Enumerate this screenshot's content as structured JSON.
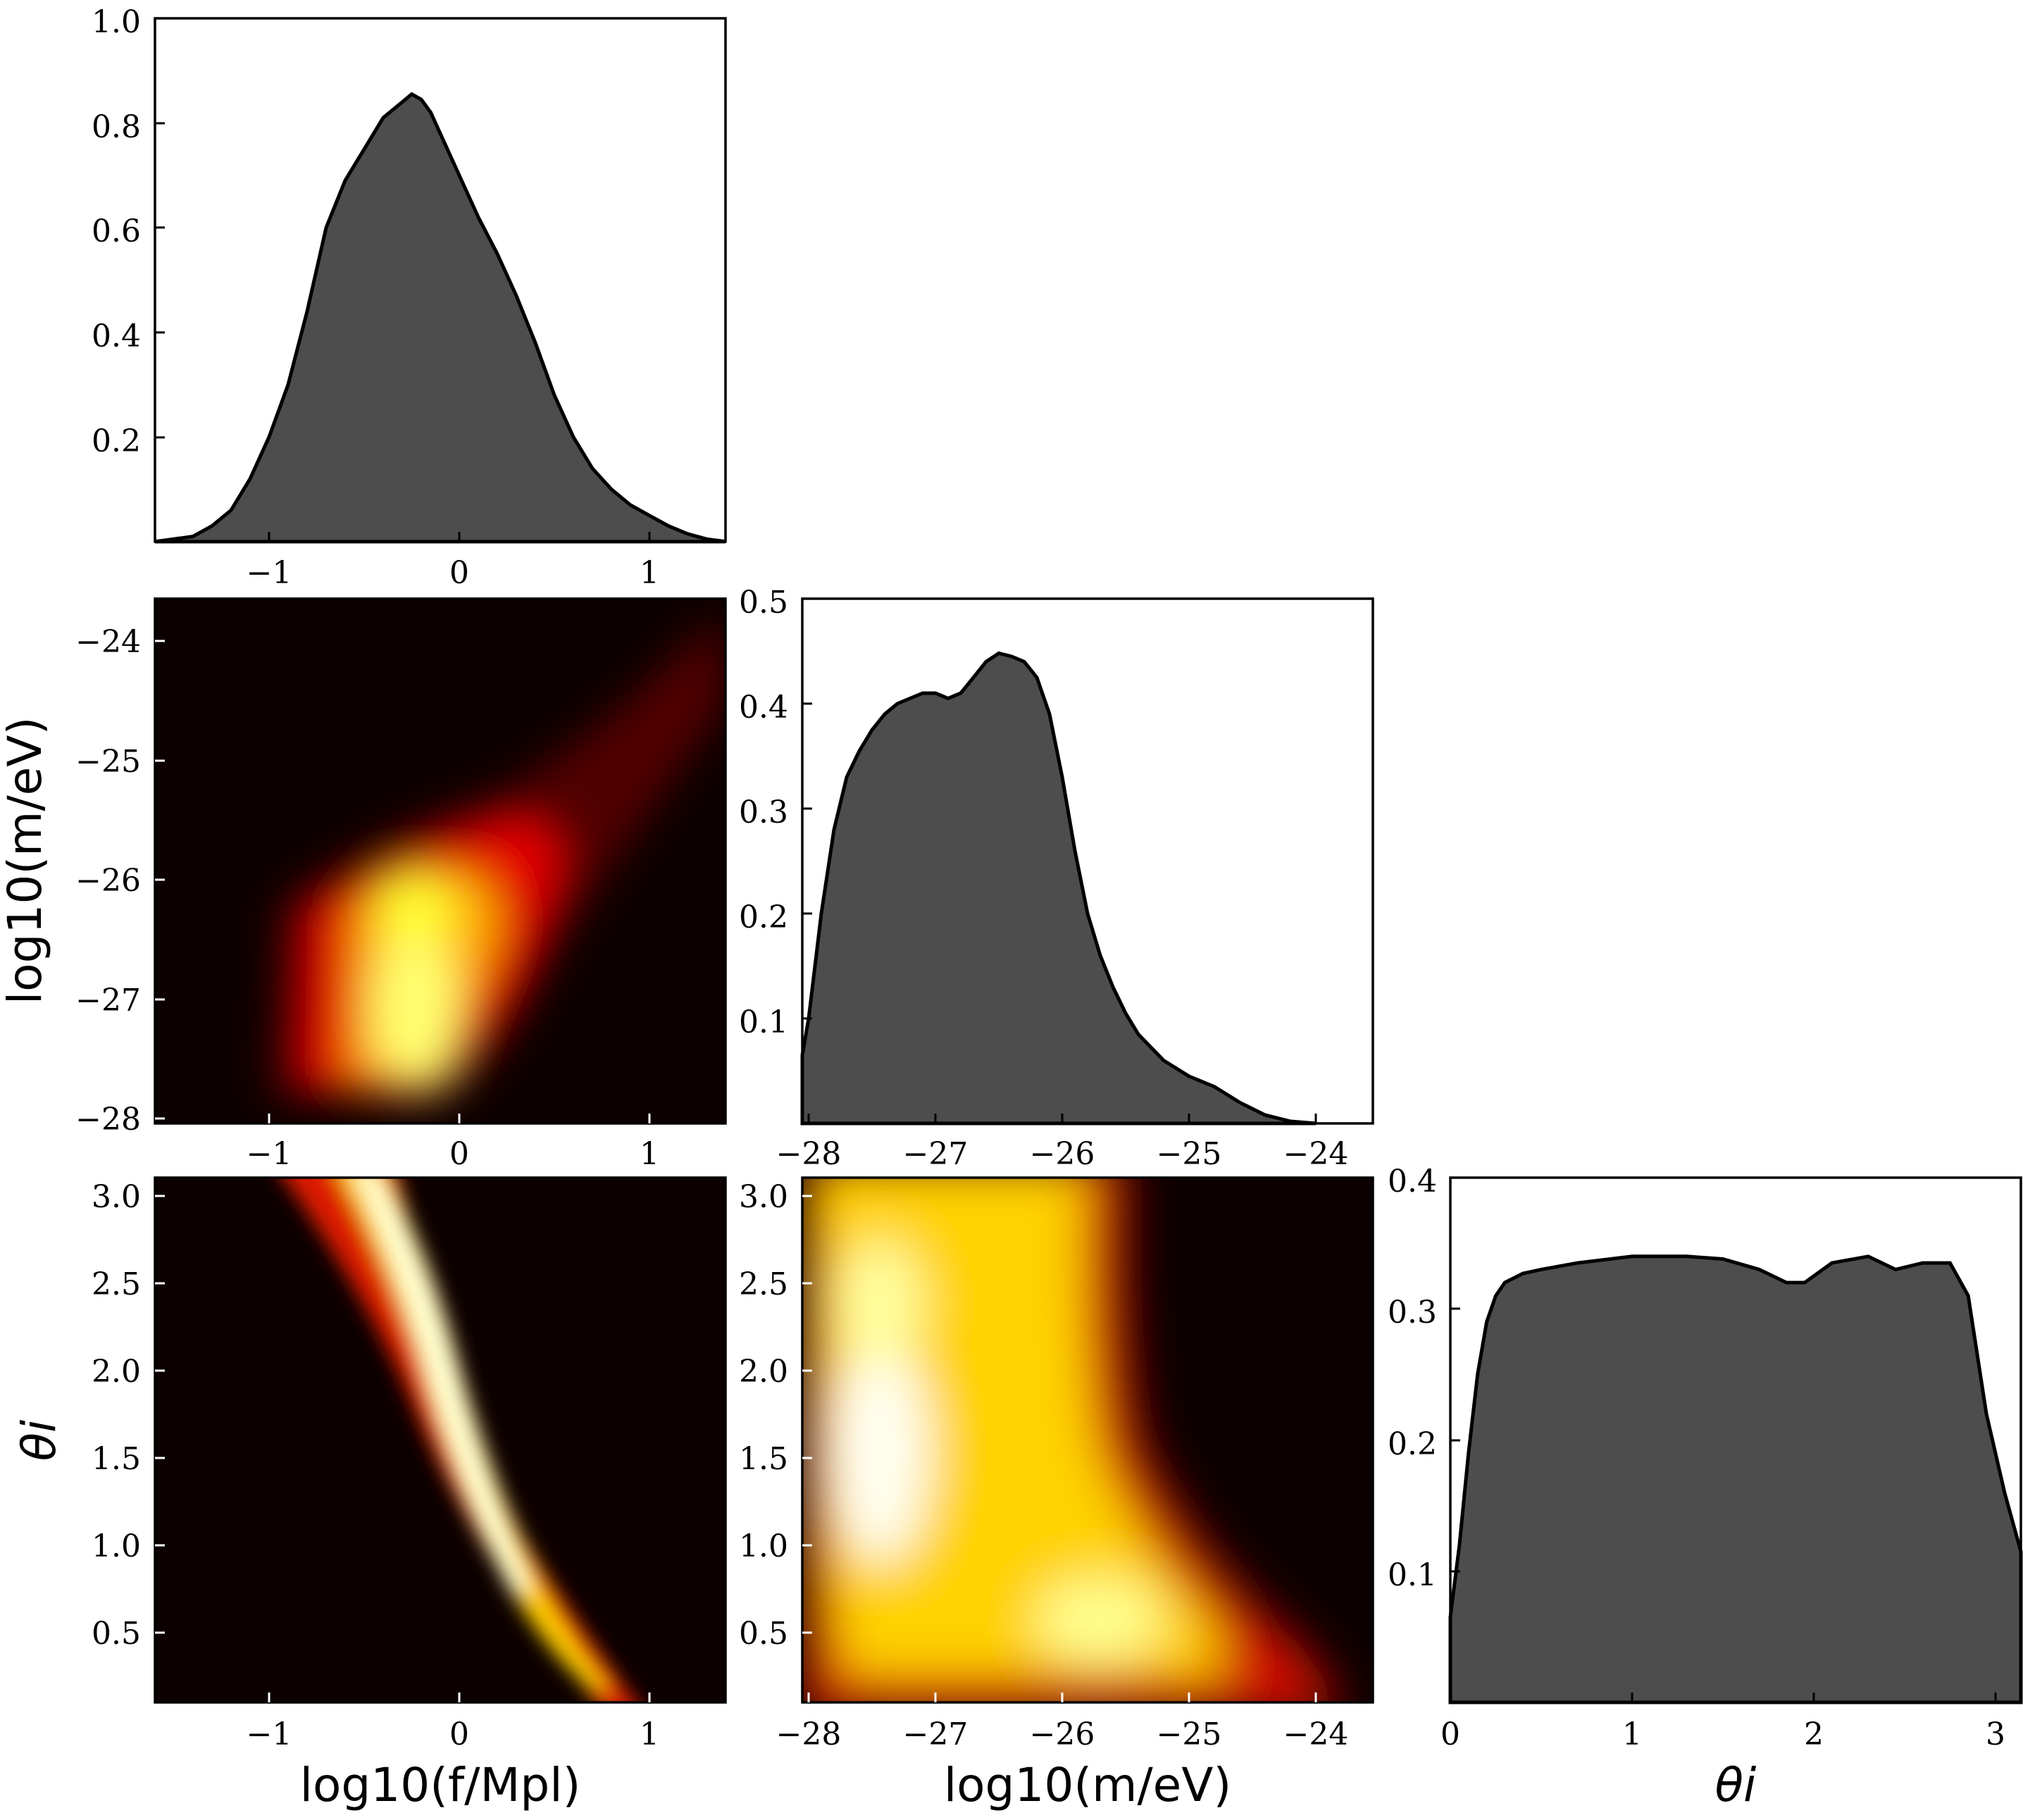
{
  "chart_data": [
    {
      "type": "area",
      "panel": "f-marginal",
      "xlim": [
        -1.6,
        1.4
      ],
      "ylim": [
        0,
        1.0
      ],
      "xticks": [
        -1,
        0,
        1
      ],
      "xtick_labels": [
        "−1",
        "0",
        "1"
      ],
      "yticks": [
        0.2,
        0.4,
        0.6,
        0.8,
        1.0
      ],
      "ytick_labels": [
        "0.2",
        "0.4",
        "0.6",
        "0.8",
        "1.0"
      ],
      "fill_color": "#4d4d4d",
      "x": [
        -1.6,
        -1.4,
        -1.3,
        -1.2,
        -1.1,
        -1.0,
        -0.9,
        -0.8,
        -0.7,
        -0.6,
        -0.5,
        -0.4,
        -0.3,
        -0.25,
        -0.2,
        -0.15,
        -0.1,
        0.0,
        0.1,
        0.2,
        0.3,
        0.4,
        0.5,
        0.6,
        0.7,
        0.8,
        0.9,
        1.0,
        1.1,
        1.2,
        1.3,
        1.4
      ],
      "y": [
        0.0,
        0.01,
        0.03,
        0.06,
        0.12,
        0.2,
        0.3,
        0.44,
        0.6,
        0.69,
        0.75,
        0.81,
        0.84,
        0.855,
        0.845,
        0.82,
        0.78,
        0.7,
        0.62,
        0.55,
        0.47,
        0.38,
        0.28,
        0.2,
        0.14,
        0.1,
        0.07,
        0.05,
        0.03,
        0.015,
        0.005,
        0.0
      ]
    },
    {
      "type": "area",
      "panel": "m-marginal",
      "xlim": [
        -28.05,
        -23.55
      ],
      "ylim": [
        0,
        0.5
      ],
      "xticks": [
        -28,
        -27,
        -26,
        -25,
        -24
      ],
      "xtick_labels": [
        "−28",
        "−27",
        "−26",
        "−25",
        "−24"
      ],
      "yticks": [
        0.1,
        0.2,
        0.3,
        0.4,
        0.5
      ],
      "ytick_labels": [
        "0.1",
        "0.2",
        "0.3",
        "0.4",
        "0.5"
      ],
      "fill_color": "#4d4d4d",
      "x": [
        -28.05,
        -28.0,
        -27.9,
        -27.8,
        -27.7,
        -27.6,
        -27.5,
        -27.4,
        -27.3,
        -27.2,
        -27.1,
        -27.0,
        -26.9,
        -26.8,
        -26.7,
        -26.6,
        -26.5,
        -26.4,
        -26.3,
        -26.2,
        -26.1,
        -26.0,
        -25.9,
        -25.8,
        -25.7,
        -25.6,
        -25.5,
        -25.4,
        -25.2,
        -25.0,
        -24.8,
        -24.6,
        -24.4,
        -24.2,
        -24.0
      ],
      "y": [
        0.065,
        0.1,
        0.2,
        0.28,
        0.33,
        0.355,
        0.375,
        0.39,
        0.4,
        0.405,
        0.41,
        0.41,
        0.405,
        0.41,
        0.425,
        0.44,
        0.448,
        0.445,
        0.44,
        0.425,
        0.39,
        0.33,
        0.26,
        0.2,
        0.16,
        0.13,
        0.105,
        0.085,
        0.06,
        0.045,
        0.035,
        0.02,
        0.008,
        0.002,
        0.0
      ]
    },
    {
      "type": "area",
      "panel": "theta-marginal",
      "xlim": [
        0,
        3.14
      ],
      "ylim": [
        0,
        0.4
      ],
      "xticks": [
        0,
        1,
        2,
        3
      ],
      "xtick_labels": [
        "0",
        "1",
        "2",
        "3"
      ],
      "yticks": [
        0.1,
        0.2,
        0.3,
        0.4
      ],
      "ytick_labels": [
        "0.1",
        "0.2",
        "0.3",
        "0.4"
      ],
      "fill_color": "#4d4d4d",
      "x": [
        0.0,
        0.05,
        0.1,
        0.15,
        0.2,
        0.25,
        0.3,
        0.4,
        0.5,
        0.7,
        1.0,
        1.3,
        1.5,
        1.7,
        1.85,
        1.95,
        2.1,
        2.3,
        2.45,
        2.6,
        2.75,
        2.85,
        2.95,
        3.05,
        3.14
      ],
      "y": [
        0.065,
        0.12,
        0.19,
        0.25,
        0.29,
        0.31,
        0.32,
        0.327,
        0.33,
        0.335,
        0.34,
        0.34,
        0.338,
        0.33,
        0.32,
        0.32,
        0.335,
        0.34,
        0.33,
        0.335,
        0.335,
        0.31,
        0.22,
        0.16,
        0.115
      ]
    },
    {
      "type": "heatmap",
      "panel": "f-m-density",
      "xlim": [
        -1.6,
        1.4
      ],
      "ylim": [
        -28.0,
        -23.6
      ],
      "xticks": [
        -1,
        0,
        1
      ],
      "xtick_labels": [
        "−1",
        "0",
        "1"
      ],
      "yticks": [
        -28,
        -27,
        -26,
        -25,
        -24
      ],
      "ytick_labels": [
        "−28",
        "−27",
        "−26",
        "−25",
        "−24"
      ],
      "ylabel": "log10(m/eV)",
      "colormap": "hot",
      "peaks": [
        {
          "x": -0.25,
          "y": -27.3,
          "intensity": 1.0
        },
        {
          "x": -0.25,
          "y": -26.3,
          "intensity": 0.9
        },
        {
          "x": 0.3,
          "y": -25.6,
          "intensity": 0.55
        }
      ]
    },
    {
      "type": "heatmap",
      "panel": "f-theta-density",
      "xlim": [
        -1.6,
        1.4
      ],
      "ylim": [
        0.1,
        3.1
      ],
      "xticks": [
        -1,
        0,
        1
      ],
      "xtick_labels": [
        "−1",
        "0",
        "1"
      ],
      "yticks": [
        0.5,
        1.0,
        1.5,
        2.0,
        2.5,
        3.0
      ],
      "ytick_labels": [
        "0.5",
        "1.0",
        "1.5",
        "2.0",
        "2.5",
        "3.0"
      ],
      "xlabel": "log10(f/Mpl)",
      "ylabel": "θi",
      "colormap": "hot",
      "ridge": [
        {
          "x": -0.6,
          "y": 3.05
        },
        {
          "x": -0.45,
          "y": 2.7
        },
        {
          "x": -0.3,
          "y": 2.3
        },
        {
          "x": -0.2,
          "y": 1.9
        },
        {
          "x": -0.1,
          "y": 1.5
        },
        {
          "x": 0.05,
          "y": 1.1
        },
        {
          "x": 0.25,
          "y": 0.7
        },
        {
          "x": 0.5,
          "y": 0.4
        },
        {
          "x": 0.75,
          "y": 0.2
        }
      ]
    },
    {
      "type": "heatmap",
      "panel": "m-theta-density",
      "xlim": [
        -28.05,
        -23.55
      ],
      "ylim": [
        0.1,
        3.1
      ],
      "xticks": [
        -28,
        -27,
        -26,
        -25,
        -24
      ],
      "xtick_labels": [
        "−28",
        "−27",
        "−26",
        "−25",
        "−24"
      ],
      "yticks": [
        0.5,
        1.0,
        1.5,
        2.0,
        2.5,
        3.0
      ],
      "ytick_labels": [
        "0.5",
        "1.0",
        "1.5",
        "2.0",
        "2.5",
        "3.0"
      ],
      "xlabel": "log10(m/eV)",
      "colormap": "hot",
      "peaks": [
        {
          "x": -27.4,
          "y": 1.3,
          "intensity": 1.0
        },
        {
          "x": -27.5,
          "y": 2.4,
          "intensity": 0.9
        },
        {
          "x": -25.8,
          "y": 0.6,
          "intensity": 0.85
        }
      ]
    },
    {
      "type": "label",
      "panel": "theta-marginal",
      "xlabel": "θi"
    }
  ]
}
